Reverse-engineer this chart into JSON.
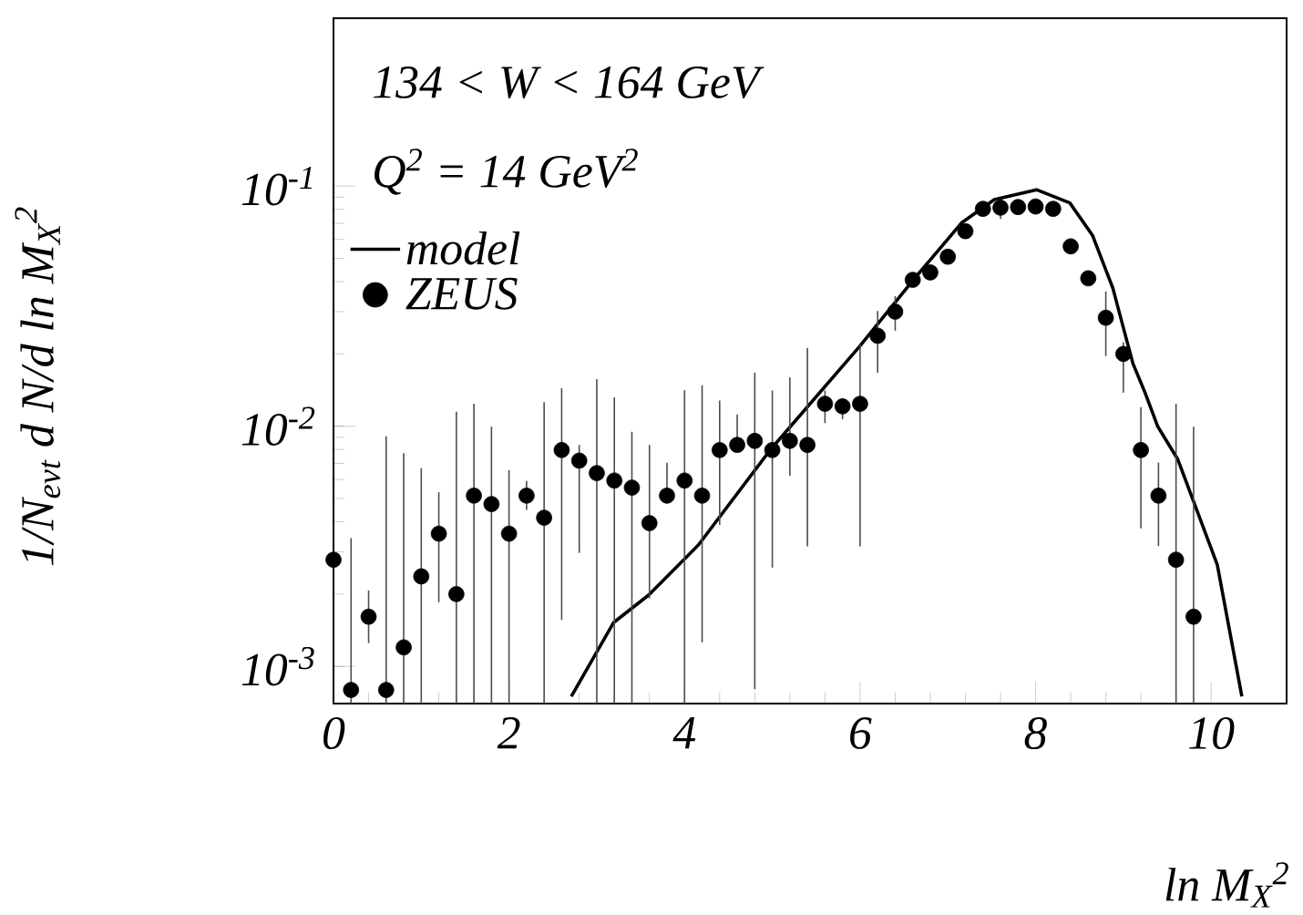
{
  "chart_data": {
    "type": "scatter",
    "xlabel": "ln M$_{X}$$^{2}$",
    "ylabel": "1/N$_{evt}$ d N/d ln M$_{X}$$^{2}$",
    "annotations": [
      "134 < W < 164 GeV",
      "Q$^{2}$ = 14 GeV$^{2}$"
    ],
    "log": "y",
    "xlim": [
      0,
      10.86
    ],
    "ylim": [
      0.0007,
      0.5
    ],
    "xticks": [
      0,
      2,
      4,
      6,
      8,
      10
    ],
    "yticks": [
      {
        "value": 0.001,
        "label": "10$^{-3}$"
      },
      {
        "value": 0.01,
        "label": "10$^{-2}$"
      },
      {
        "value": 0.1,
        "label": "10$^{-1}$"
      }
    ],
    "legend": "top left",
    "series": [
      {
        "name": "model",
        "type": "line",
        "color": "#000000",
        "marker": "none",
        "line_style": "solid",
        "x": [
          2.71,
          3.19,
          3.59,
          4.16,
          4.98,
          5.99,
          6.59,
          7.16,
          7.53,
          8.01,
          8.39,
          8.65,
          8.88,
          9.0,
          9.11,
          9.25,
          9.39,
          9.62,
          10.07,
          10.35
        ],
        "values": [
          0.00075,
          0.00152,
          0.00198,
          0.00321,
          0.008,
          0.0214,
          0.04,
          0.0705,
          0.0879,
          0.0966,
          0.0851,
          0.0622,
          0.0376,
          0.0257,
          0.0182,
          0.0137,
          0.01,
          0.00728,
          0.00265,
          0.00075
        ]
      },
      {
        "name": "ZEUS",
        "color": "#000000",
        "marker": "circle",
        "x": [
          0,
          0.2,
          0.4,
          0.6,
          0.8,
          1.0,
          1.2,
          1.4,
          1.6,
          1.8,
          2.0,
          2.2,
          2.4,
          2.6,
          2.8,
          3.0,
          3.2,
          3.4,
          3.6,
          3.8,
          4.0,
          4.2,
          4.4,
          4.6,
          4.8,
          5.0,
          5.2,
          5.4,
          5.6,
          5.8,
          6.0,
          6.2,
          6.4,
          6.6,
          6.8,
          7.0,
          7.2,
          7.4,
          7.6,
          7.8,
          8.0,
          8.2,
          8.4,
          8.6,
          8.8,
          9.0,
          9.2,
          9.4,
          9.6,
          9.8
        ],
        "values": [
          0.00278,
          0.000798,
          0.00161,
          0.000798,
          0.0012,
          0.00237,
          0.00357,
          0.002,
          0.00514,
          0.00474,
          0.00357,
          0.00514,
          0.00416,
          0.00796,
          0.00719,
          0.00638,
          0.00594,
          0.00555,
          0.00395,
          0.00514,
          0.00594,
          0.00514,
          0.00796,
          0.00836,
          0.00869,
          0.00796,
          0.00869,
          0.00836,
          0.0124,
          0.0121,
          0.0124,
          0.0238,
          0.03,
          0.0407,
          0.0437,
          0.0508,
          0.0649,
          0.0804,
          0.0813,
          0.0818,
          0.0822,
          0.0804,
          0.0561,
          0.0413,
          0.0283,
          0.02,
          0.00796,
          0.00514,
          0.00278,
          0.00161
        ],
        "errors": [
          null,
          [
            0.0007,
            0.00342
          ],
          [
            0.00125,
            0.00207
          ],
          [
            0.0007,
            0.00908
          ],
          [
            0.0007,
            0.00773
          ],
          [
            0.0007,
            0.00668
          ],
          [
            0.00185,
            0.00531
          ],
          [
            0.0007,
            0.0115
          ],
          [
            0.0007,
            0.0124
          ],
          [
            0.0007,
            0.00995
          ],
          [
            0.0007,
            0.00655
          ],
          [
            0.00448,
            0.00592
          ],
          [
            0.0007,
            0.0126
          ],
          [
            0.00156,
            0.0144
          ],
          [
            0.00297,
            0.00836
          ],
          [
            0.0007,
            0.0157
          ],
          [
            0.0007,
            0.0132
          ],
          [
            0.0007,
            0.00948
          ],
          [
            0.00192,
            0.00836
          ],
          [
            0.00483,
            0.00705
          ],
          [
            0.0007,
            0.0141
          ],
          [
            0.00126,
            0.0148
          ],
          [
            0.00388,
            0.0128
          ],
          [
            0.008,
            0.0112
          ],
          [
            0.000804,
            0.0167
          ],
          [
            0.00258,
            0.0141
          ],
          [
            0.00622,
            0.016
          ],
          [
            0.00316,
            0.0212
          ],
          [
            0.0103,
            0.0141
          ],
          [
            0.0107,
            0.013
          ],
          [
            0.00316,
            0.0219
          ],
          [
            0.0167,
            0.0302
          ],
          [
            0.025,
            0.0348
          ],
          null,
          null,
          [
            0.0474,
            0.0537
          ],
          null,
          null,
          [
            0.0729,
            0.0849
          ],
          null,
          null,
          null,
          null,
          null,
          [
            0.0196,
            0.0364
          ],
          [
            0.0138,
            0.0224
          ],
          [
            0.00376,
            0.012
          ],
          [
            0.00317,
            0.00705
          ],
          [
            0.0007,
            0.0124
          ],
          [
            0.0007,
            0.00995
          ]
        ]
      }
    ]
  }
}
